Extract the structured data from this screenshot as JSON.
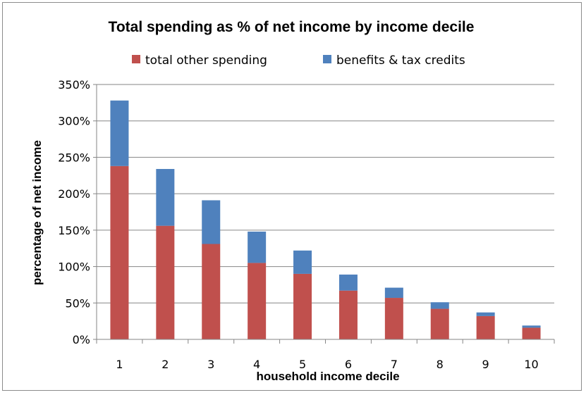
{
  "chart_data": {
    "type": "bar",
    "stacked": true,
    "title": "Total spending as % of net income by income decile",
    "xlabel": "household income decile",
    "ylabel": "percentage of net income",
    "categories": [
      "1",
      "2",
      "3",
      "4",
      "5",
      "6",
      "7",
      "8",
      "9",
      "10"
    ],
    "series": [
      {
        "name": "total other spending",
        "color": "#c0504d",
        "values": [
          238,
          156,
          131,
          105,
          90,
          67,
          57,
          42,
          32,
          16
        ]
      },
      {
        "name": "benefits & tax credits",
        "color": "#4f81bd",
        "values": [
          90,
          78,
          60,
          43,
          32,
          22,
          14,
          9,
          5,
          3
        ]
      }
    ],
    "ylim": [
      0,
      350
    ],
    "ytick_step": 50,
    "ytick_labels": [
      "0%",
      "50%",
      "100%",
      "150%",
      "200%",
      "250%",
      "300%",
      "350%"
    ],
    "grid": true,
    "legend_position": "top"
  }
}
